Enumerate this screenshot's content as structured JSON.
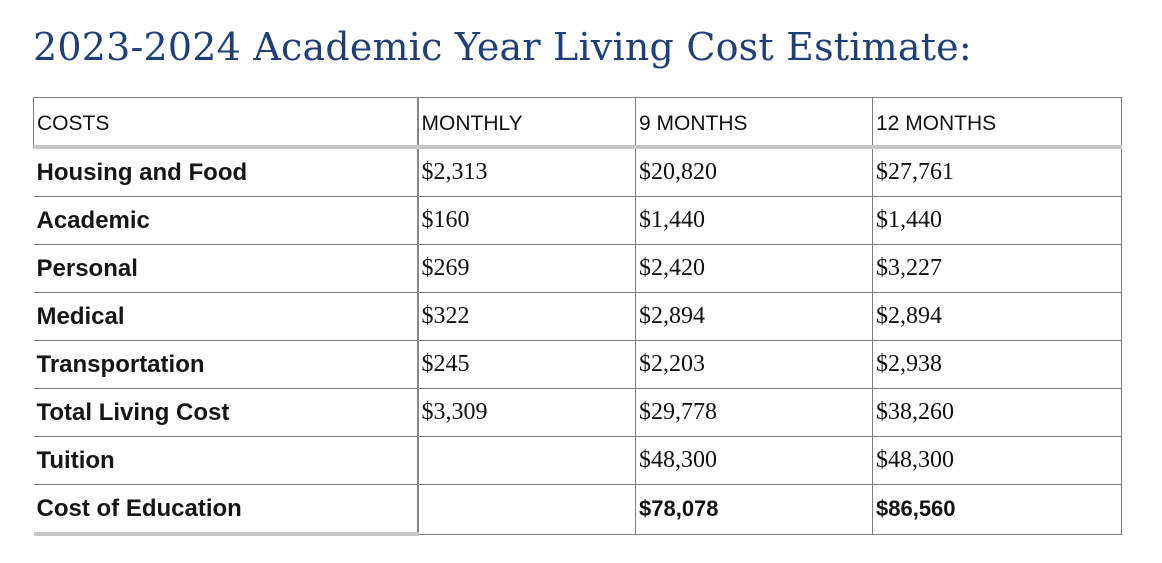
{
  "title": "2023-2024 Academic Year Living Cost Estimate:",
  "table": {
    "headers": [
      "COSTS",
      "MONTHLY",
      "9 MONTHS",
      "12 MONTHS"
    ],
    "rows": [
      {
        "label": "Housing and Food",
        "monthly": "$2,313",
        "nine_months": "$20,820",
        "twelve_months": "$27,761"
      },
      {
        "label": "Academic",
        "monthly": "$160",
        "nine_months": "$1,440",
        "twelve_months": "$1,440"
      },
      {
        "label": "Personal",
        "monthly": "$269",
        "nine_months": "$2,420",
        "twelve_months": "$3,227"
      },
      {
        "label": "Medical",
        "monthly": "$322",
        "nine_months": "$2,894",
        "twelve_months": "$2,894"
      },
      {
        "label": "Transportation",
        "monthly": "$245",
        "nine_months": "$2,203",
        "twelve_months": "$2,938"
      },
      {
        "label": "Total Living Cost",
        "monthly": "$3,309",
        "nine_months": "$29,778",
        "twelve_months": "$38,260"
      },
      {
        "label": "Tuition",
        "monthly": "",
        "nine_months": "$48,300",
        "twelve_months": "$48,300"
      },
      {
        "label": "Cost of Education",
        "monthly": "",
        "nine_months": "$78,078",
        "twelve_months": "$86,560"
      }
    ]
  }
}
